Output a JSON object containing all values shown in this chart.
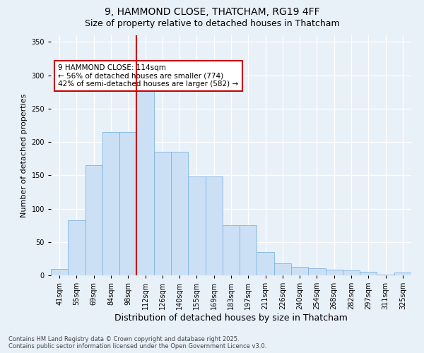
{
  "title_line1": "9, HAMMOND CLOSE, THATCHAM, RG19 4FF",
  "title_line2": "Size of property relative to detached houses in Thatcham",
  "xlabel": "Distribution of detached houses by size in Thatcham",
  "ylabel": "Number of detached properties",
  "categories": [
    "41sqm",
    "55sqm",
    "69sqm",
    "84sqm",
    "98sqm",
    "112sqm",
    "126sqm",
    "140sqm",
    "155sqm",
    "169sqm",
    "183sqm",
    "197sqm",
    "211sqm",
    "226sqm",
    "240sqm",
    "254sqm",
    "268sqm",
    "282sqm",
    "297sqm",
    "311sqm",
    "325sqm"
  ],
  "values": [
    10,
    83,
    165,
    215,
    215,
    290,
    185,
    185,
    148,
    148,
    75,
    75,
    35,
    18,
    13,
    11,
    9,
    7,
    5,
    1,
    4
  ],
  "bar_color": "#cce0f5",
  "bar_edge_color": "#7fb3e0",
  "vline_color": "#cc0000",
  "vline_idx": 4.5,
  "annotation_text": "9 HAMMOND CLOSE: 114sqm\n← 56% of detached houses are smaller (774)\n42% of semi-detached houses are larger (582) →",
  "annotation_box_color": "#ffffff",
  "annotation_box_edge": "#cc0000",
  "ylim": [
    0,
    360
  ],
  "yticks": [
    0,
    50,
    100,
    150,
    200,
    250,
    300,
    350
  ],
  "footnote": "Contains HM Land Registry data © Crown copyright and database right 2025.\nContains public sector information licensed under the Open Government Licence v3.0.",
  "background_color": "#e8f0f8",
  "grid_color": "#ffffff",
  "title_fontsize": 10,
  "subtitle_fontsize": 9,
  "ylabel_fontsize": 8,
  "xlabel_fontsize": 9,
  "tick_fontsize": 7,
  "footnote_fontsize": 6,
  "ann_fontsize": 7.5
}
